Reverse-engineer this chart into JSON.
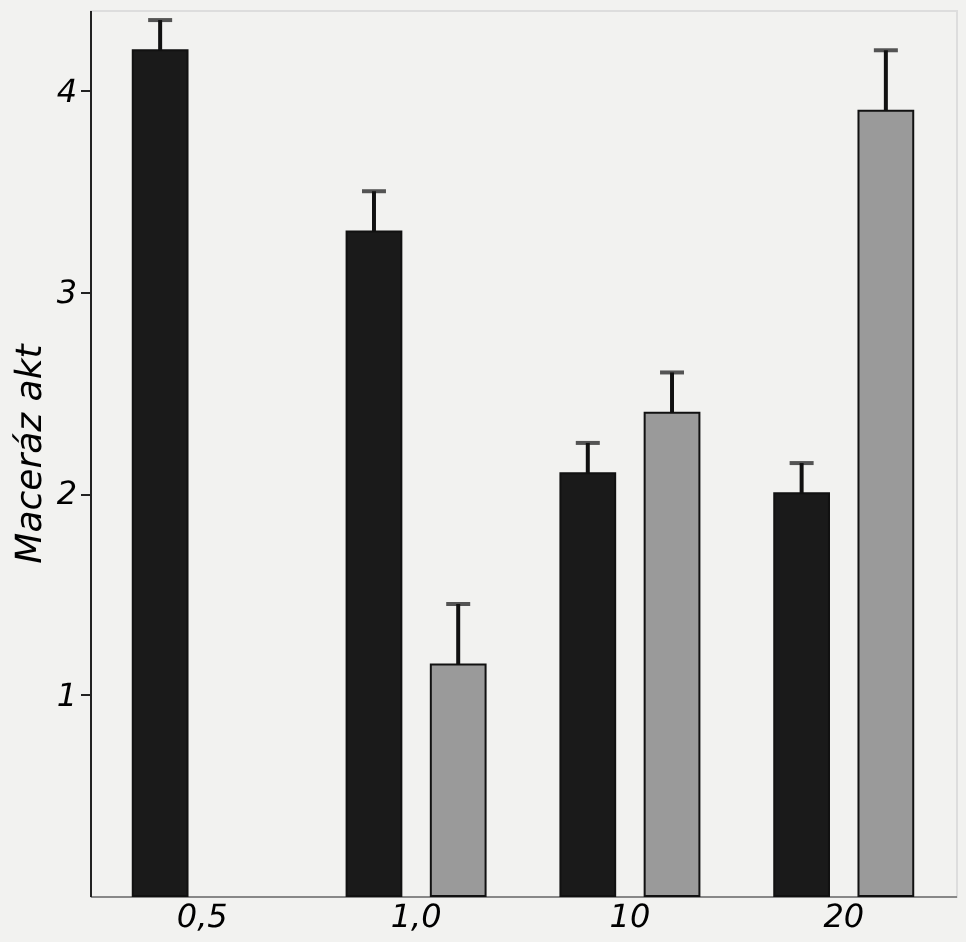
{
  "chart_data": {
    "type": "bar",
    "ylabel": "Maceráz akt",
    "categories": [
      "0,5",
      "1,0",
      "10",
      "20"
    ],
    "series": [
      {
        "color": "#1a1a1a",
        "values": [
          4.2,
          3.3,
          2.1,
          2.0
        ],
        "errors": [
          [
            4.2,
            4.35
          ],
          [
            3.3,
            3.5
          ],
          [
            2.1,
            2.25
          ],
          [
            2.0,
            2.15
          ]
        ]
      },
      {
        "color": "#9a9a9a",
        "values": [
          null,
          1.15,
          2.4,
          3.9
        ],
        "errors": [
          null,
          [
            1.15,
            1.45
          ],
          [
            2.4,
            2.6
          ],
          [
            3.9,
            4.2
          ]
        ]
      }
    ],
    "ylim": [
      0,
      4.4
    ],
    "yticks": [
      1,
      2,
      3,
      4
    ],
    "grid": false,
    "legend": false
  }
}
